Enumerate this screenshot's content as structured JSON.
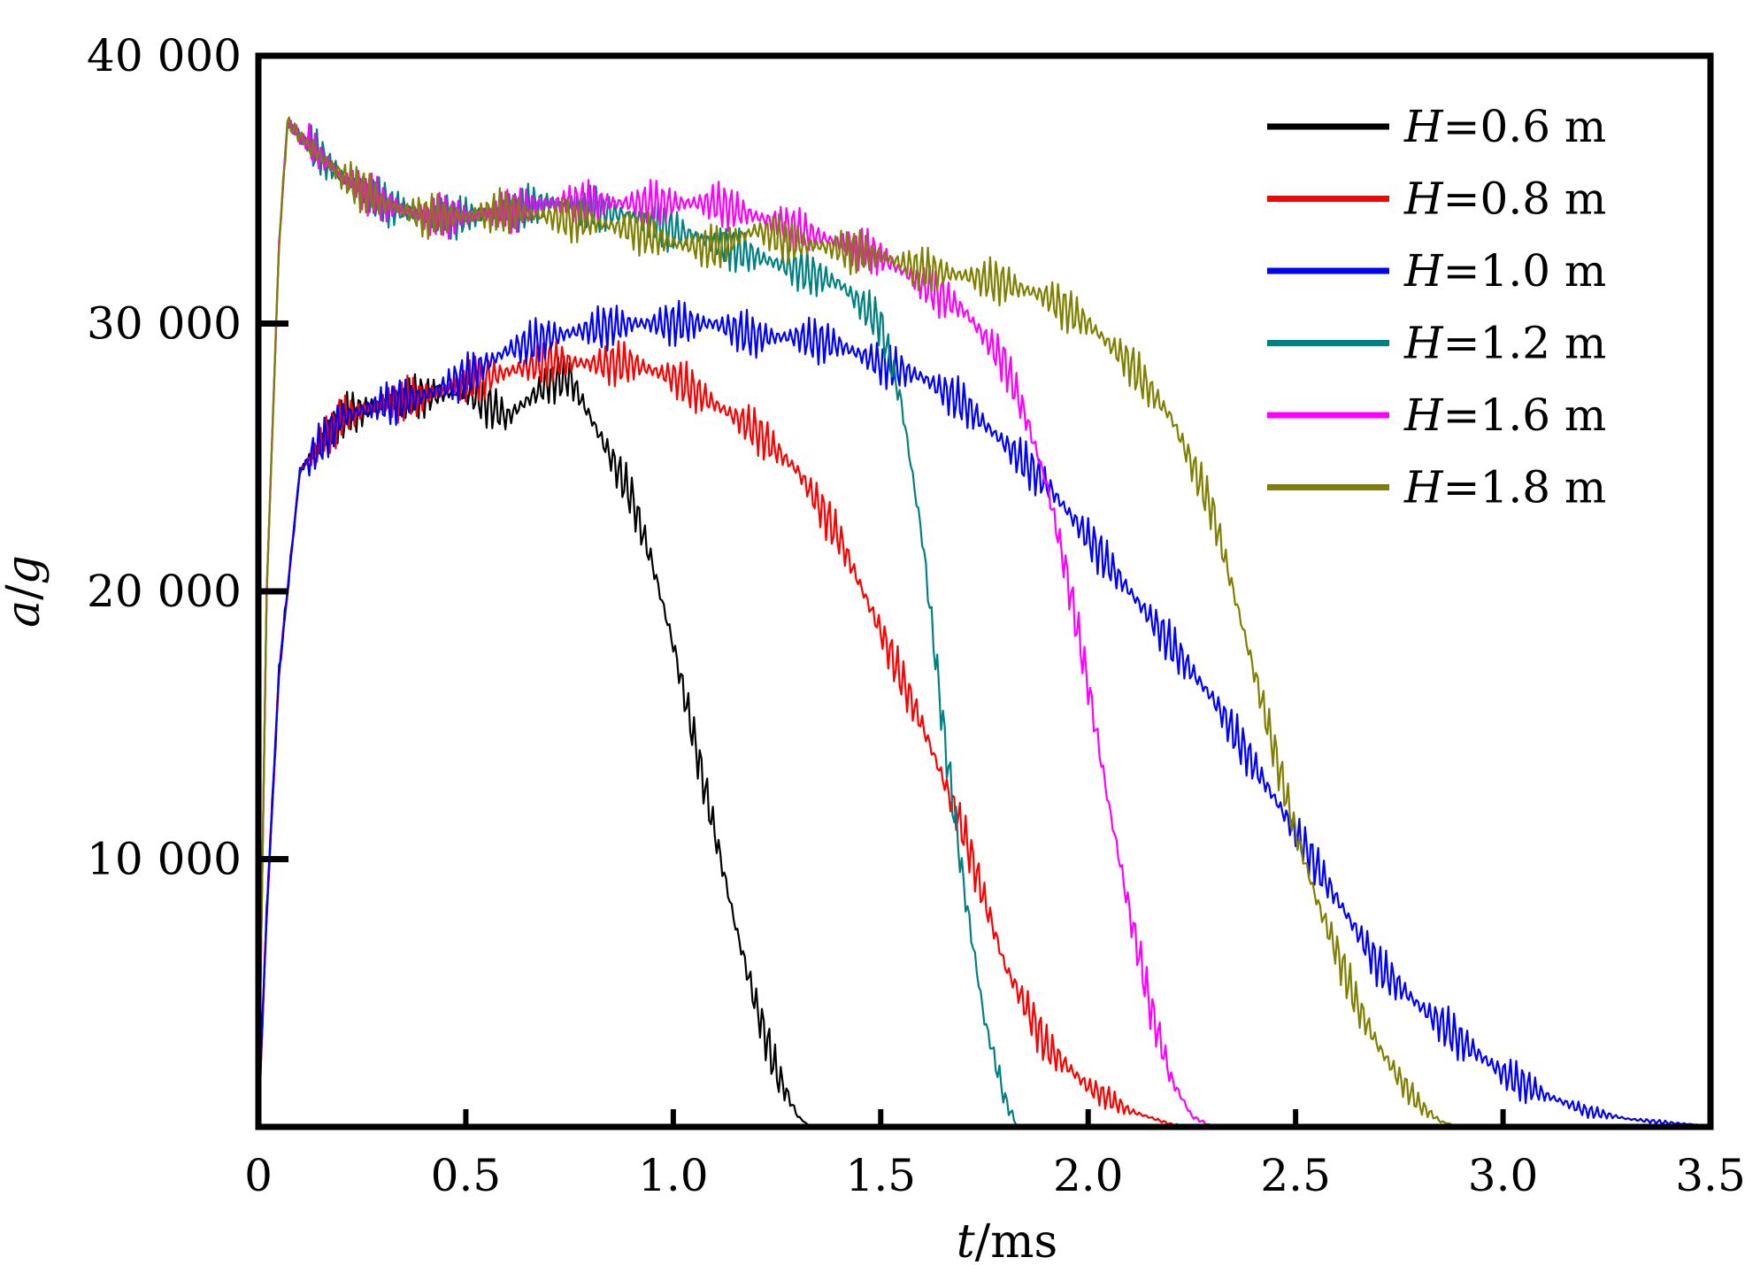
{
  "chart_data": {
    "type": "line",
    "xlabel_var": "t",
    "xlabel_unit": "/ms",
    "ylabel_var": "a",
    "ylabel_sep": "/",
    "ylabel_unit": "g",
    "xlim": [
      0,
      3.5
    ],
    "ylim": [
      0,
      40000
    ],
    "x_ticks": [
      0,
      0.5,
      1.0,
      1.5,
      2.0,
      2.5,
      3.0,
      3.5
    ],
    "x_tick_labels": [
      "0",
      "0.5",
      "1.0",
      "1.5",
      "2.0",
      "2.5",
      "3.0",
      "3.5"
    ],
    "y_ticks": [
      10000,
      20000,
      30000,
      40000
    ],
    "y_tick_labels": [
      "10 000",
      "20 000",
      "30 000",
      "40 000"
    ],
    "grid": false,
    "legend_position": "top-right",
    "series": [
      {
        "name": "H=0.6 m",
        "legend_var": "H",
        "legend_rest": "=0.6 m",
        "color": "#000000",
        "x": [
          0,
          0.02,
          0.05,
          0.1,
          0.2,
          0.3,
          0.4,
          0.5,
          0.6,
          0.7,
          0.75,
          0.8,
          0.85,
          0.9,
          0.95,
          1.0,
          1.05,
          1.1,
          1.15,
          1.2,
          1.25,
          1.3,
          1.33
        ],
        "y": [
          0,
          8000,
          17000,
          24500,
          26500,
          27000,
          27300,
          27500,
          26500,
          27800,
          28000,
          26500,
          25000,
          23500,
          21000,
          18000,
          14500,
          11000,
          7500,
          4500,
          2000,
          400,
          0
        ]
      },
      {
        "name": "H=0.8 m",
        "legend_var": "H",
        "legend_rest": "=0.8 m",
        "color": "#ff0000",
        "x": [
          0,
          0.02,
          0.05,
          0.1,
          0.2,
          0.3,
          0.4,
          0.5,
          0.6,
          0.7,
          0.8,
          0.9,
          1.0,
          1.1,
          1.2,
          1.3,
          1.4,
          1.5,
          1.6,
          1.7,
          1.8,
          1.9,
          2.0,
          2.1,
          2.2,
          2.25
        ],
        "y": [
          0,
          8000,
          17000,
          24500,
          26500,
          27000,
          27300,
          27800,
          28200,
          28600,
          28500,
          28500,
          28000,
          27000,
          26000,
          24500,
          22000,
          18500,
          15000,
          11000,
          6000,
          3000,
          1500,
          600,
          100,
          0
        ]
      },
      {
        "name": "H=1.0 m",
        "legend_var": "H",
        "legend_rest": "=1.0 m",
        "color": "#0000ff",
        "x": [
          0,
          0.02,
          0.05,
          0.1,
          0.2,
          0.3,
          0.4,
          0.5,
          0.6,
          0.7,
          0.8,
          0.9,
          1.0,
          1.1,
          1.2,
          1.3,
          1.4,
          1.5,
          1.6,
          1.7,
          1.8,
          1.9,
          2.0,
          2.1,
          2.2,
          2.3,
          2.4,
          2.5,
          2.6,
          2.7,
          2.8,
          2.9,
          3.0,
          3.1,
          3.2,
          3.3,
          3.4,
          3.5
        ],
        "y": [
          0,
          8000,
          17000,
          24500,
          26500,
          27000,
          27300,
          28000,
          29000,
          29500,
          29800,
          30000,
          30000,
          30000,
          29500,
          29500,
          29200,
          28500,
          28000,
          27000,
          25500,
          24000,
          22000,
          20000,
          18000,
          16000,
          13500,
          11000,
          8500,
          6000,
          4500,
          3200,
          2000,
          1200,
          600,
          300,
          150,
          50
        ]
      },
      {
        "name": "H=1.2 m",
        "legend_var": "H",
        "legend_rest": "=1.2 m",
        "color": "#008080",
        "x": [
          0,
          0.02,
          0.05,
          0.07,
          0.1,
          0.2,
          0.3,
          0.4,
          0.5,
          0.6,
          0.7,
          0.8,
          0.9,
          1.0,
          1.1,
          1.2,
          1.3,
          1.4,
          1.5,
          1.55,
          1.6,
          1.65,
          1.7,
          1.75,
          1.8,
          1.83
        ],
        "y": [
          0,
          20000,
          33000,
          37500,
          37000,
          35500,
          34500,
          34000,
          34000,
          34200,
          34500,
          34300,
          34000,
          33500,
          33000,
          32500,
          32000,
          31500,
          30000,
          27000,
          22000,
          15000,
          9000,
          4000,
          1000,
          0
        ]
      },
      {
        "name": "H=1.6 m",
        "legend_var": "H",
        "legend_rest": "=1.6 m",
        "color": "#ff00ff",
        "x": [
          0,
          0.02,
          0.05,
          0.07,
          0.1,
          0.2,
          0.3,
          0.4,
          0.5,
          0.6,
          0.7,
          0.8,
          0.9,
          1.0,
          1.1,
          1.2,
          1.3,
          1.4,
          1.5,
          1.6,
          1.7,
          1.8,
          1.85,
          1.9,
          1.95,
          2.0,
          2.05,
          2.1,
          2.15,
          2.2,
          2.25,
          2.3
        ],
        "y": [
          0,
          20000,
          33000,
          37500,
          37000,
          35500,
          34500,
          34000,
          34000,
          34200,
          34500,
          34500,
          34500,
          34500,
          34500,
          34000,
          33500,
          33000,
          32500,
          31500,
          30500,
          28500,
          26500,
          24000,
          20500,
          16500,
          12000,
          8000,
          4500,
          1800,
          400,
          0
        ]
      },
      {
        "name": "H=1.8 m",
        "legend_var": "H",
        "legend_rest": "=1.8 m",
        "color": "#808000",
        "x": [
          0,
          0.02,
          0.05,
          0.07,
          0.1,
          0.2,
          0.3,
          0.4,
          0.5,
          0.6,
          0.7,
          0.8,
          0.9,
          1.0,
          1.1,
          1.2,
          1.3,
          1.4,
          1.5,
          1.6,
          1.7,
          1.8,
          1.9,
          2.0,
          2.1,
          2.2,
          2.3,
          2.4,
          2.5,
          2.55,
          2.6,
          2.65,
          2.7,
          2.75,
          2.8,
          2.85,
          2.9
        ],
        "y": [
          0,
          20000,
          33000,
          37500,
          37000,
          35500,
          34500,
          34000,
          34000,
          34200,
          34000,
          33800,
          33500,
          33000,
          32800,
          33500,
          33000,
          32800,
          32500,
          32000,
          31800,
          31500,
          31000,
          30000,
          28500,
          26500,
          23000,
          17000,
          11000,
          8500,
          6500,
          4500,
          3000,
          1800,
          800,
          200,
          0
        ]
      }
    ]
  }
}
